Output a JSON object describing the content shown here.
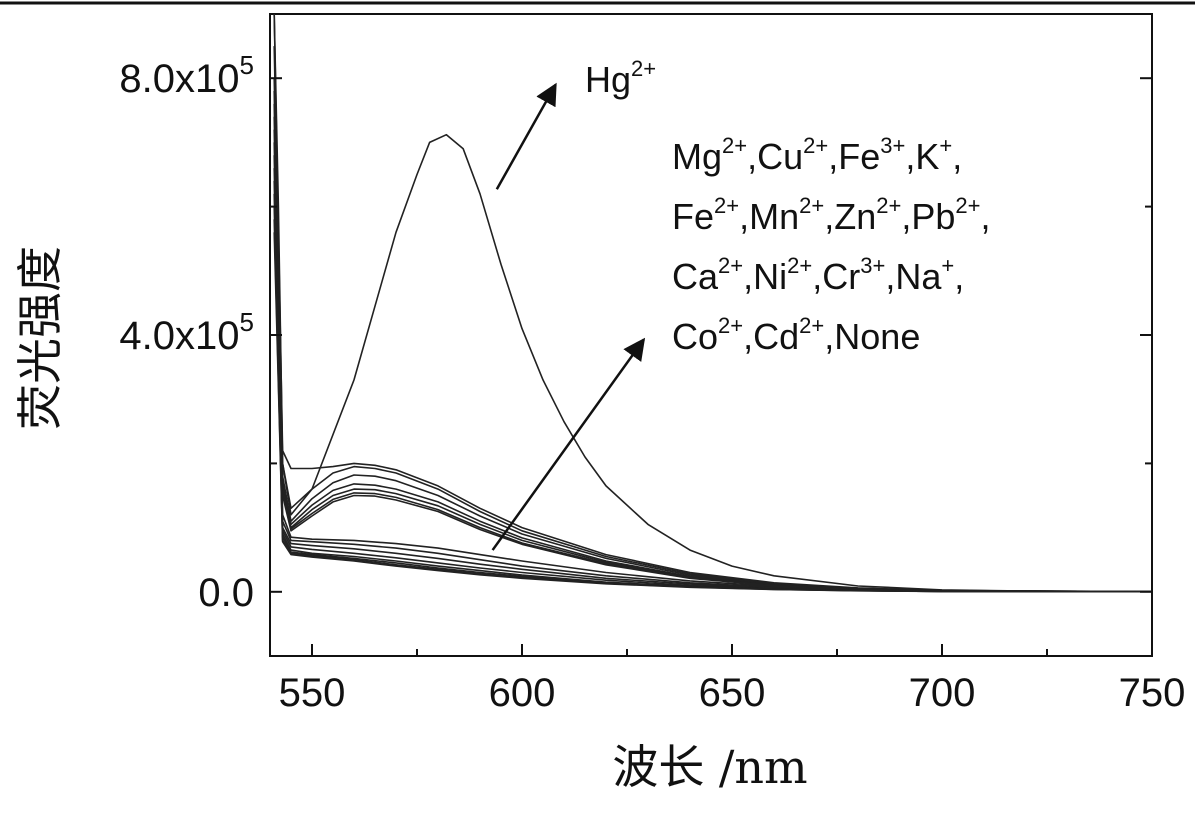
{
  "chart_data": {
    "type": "line",
    "xlabel": "波长 /nm",
    "ylabel": "荧光强度",
    "xlim": [
      540,
      750
    ],
    "ylim": [
      -100000,
      900000
    ],
    "x_ticks": [
      {
        "value": 550,
        "label": "550"
      },
      {
        "value": 600,
        "label": "600"
      },
      {
        "value": 650,
        "label": "650"
      },
      {
        "value": 700,
        "label": "700"
      },
      {
        "value": 750,
        "label": "750"
      }
    ],
    "y_ticks": [
      {
        "value": 0,
        "mantissa": "0.0",
        "exp": ""
      },
      {
        "value": 400000,
        "mantissa": "4.0x10",
        "exp": "5"
      },
      {
        "value": 800000,
        "mantissa": "8.0x10",
        "exp": "5"
      }
    ],
    "grid": false,
    "series": [
      {
        "x": [
          541,
          542,
          543,
          545,
          550,
          560,
          570,
          575,
          578,
          582,
          586,
          590,
          595,
          600,
          605,
          610,
          615,
          620,
          630,
          640,
          650,
          660,
          680,
          700,
          725,
          750
        ],
        "y": [
          900000,
          600000,
          200000,
          130000,
          160000,
          330000,
          560000,
          650000,
          700000,
          712000,
          690000,
          620000,
          510000,
          410000,
          330000,
          265000,
          210000,
          165000,
          105000,
          65000,
          40000,
          25000,
          9000,
          3000,
          800,
          200
        ]
      },
      {
        "x": [
          541,
          543,
          545,
          550,
          555,
          560,
          565,
          570,
          580,
          590,
          600,
          620,
          640,
          660,
          680,
          700,
          750
        ],
        "y": [
          900000,
          220000,
          192000,
          192000,
          195000,
          200000,
          197000,
          190000,
          165000,
          130000,
          100000,
          58000,
          30000,
          14000,
          6000,
          2000,
          300
        ]
      },
      {
        "x": [
          541,
          543,
          545,
          550,
          555,
          560,
          565,
          570,
          580,
          590,
          600,
          620,
          640,
          660,
          680,
          700,
          750
        ],
        "y": [
          850000,
          200000,
          120000,
          160000,
          185000,
          195000,
          192000,
          185000,
          160000,
          125000,
          95000,
          55000,
          28000,
          13000,
          5500,
          1800,
          300
        ]
      },
      {
        "x": [
          541,
          543,
          545,
          550,
          555,
          560,
          565,
          570,
          580,
          590,
          600,
          620,
          640,
          660,
          680,
          700,
          750
        ],
        "y": [
          800000,
          180000,
          110000,
          145000,
          170000,
          182000,
          180000,
          173000,
          150000,
          118000,
          90000,
          52000,
          26000,
          12000,
          5000,
          1600,
          300
        ]
      },
      {
        "x": [
          541,
          543,
          545,
          550,
          555,
          560,
          565,
          570,
          580,
          590,
          600,
          620,
          640,
          660,
          680,
          700,
          750
        ],
        "y": [
          780000,
          170000,
          105000,
          135000,
          158000,
          168000,
          166000,
          160000,
          140000,
          110000,
          84000,
          48000,
          24000,
          11000,
          4500,
          1500,
          300
        ]
      },
      {
        "x": [
          541,
          543,
          545,
          550,
          555,
          560,
          565,
          570,
          580,
          590,
          600,
          620,
          640,
          660,
          680,
          700,
          750
        ],
        "y": [
          760000,
          160000,
          100000,
          128000,
          150000,
          160000,
          159000,
          153000,
          134000,
          105000,
          80000,
          46000,
          23000,
          10500,
          4300,
          1400,
          300
        ]
      },
      {
        "x": [
          541,
          543,
          545,
          550,
          555,
          560,
          565,
          570,
          580,
          590,
          600,
          620,
          640,
          660,
          680,
          700,
          750
        ],
        "y": [
          740000,
          155000,
          98000,
          122000,
          144000,
          154000,
          153000,
          147000,
          128000,
          100000,
          76000,
          44000,
          22000,
          10000,
          4000,
          1300,
          300
        ]
      },
      {
        "x": [
          541,
          543,
          545,
          550,
          555,
          560,
          565,
          570,
          580,
          590,
          600,
          620,
          640,
          660,
          680,
          700,
          750
        ],
        "y": [
          720000,
          150000,
          95000,
          118000,
          140000,
          150000,
          149000,
          143000,
          125000,
          97000,
          74000,
          42000,
          21000,
          9500,
          3800,
          1200,
          300
        ]
      },
      {
        "x": [
          541,
          543,
          545,
          550,
          560,
          570,
          580,
          590,
          600,
          620,
          640,
          660,
          680,
          700,
          750
        ],
        "y": [
          700000,
          120000,
          85000,
          82000,
          80000,
          75000,
          68000,
          58000,
          48000,
          30000,
          17000,
          8500,
          3500,
          1200,
          200
        ]
      },
      {
        "x": [
          541,
          543,
          545,
          550,
          560,
          570,
          580,
          590,
          600,
          620,
          640,
          660,
          680,
          700,
          750
        ],
        "y": [
          680000,
          110000,
          80000,
          78000,
          74000,
          68000,
          60000,
          50000,
          40000,
          25000,
          14000,
          7000,
          3000,
          1000,
          200
        ]
      },
      {
        "x": [
          541,
          543,
          545,
          550,
          560,
          570,
          580,
          590,
          600,
          620,
          640,
          660,
          680,
          700,
          750
        ],
        "y": [
          660000,
          100000,
          75000,
          72000,
          67000,
          60000,
          52000,
          43000,
          35000,
          21000,
          12000,
          6000,
          2600,
          900,
          200
        ]
      },
      {
        "x": [
          541,
          543,
          545,
          550,
          560,
          570,
          580,
          590,
          600,
          620,
          640,
          660,
          680,
          700,
          750
        ],
        "y": [
          640000,
          95000,
          70000,
          66000,
          60000,
          53000,
          45000,
          37000,
          30000,
          18000,
          10000,
          5000,
          2200,
          800,
          200
        ]
      },
      {
        "x": [
          541,
          543,
          545,
          550,
          560,
          570,
          580,
          590,
          600,
          620,
          640,
          660,
          680,
          700,
          750
        ],
        "y": [
          620000,
          90000,
          65000,
          60000,
          55000,
          48000,
          40000,
          33000,
          26000,
          15000,
          8500,
          4300,
          1900,
          700,
          200
        ]
      },
      {
        "x": [
          541,
          543,
          545,
          550,
          560,
          570,
          580,
          590,
          600,
          620,
          640,
          660,
          680,
          700,
          750
        ],
        "y": [
          600000,
          85000,
          62000,
          58000,
          52000,
          45000,
          37000,
          30000,
          24000,
          14000,
          8000,
          4000,
          1800,
          650,
          200
        ]
      },
      {
        "x": [
          541,
          543,
          545,
          550,
          560,
          570,
          580,
          590,
          600,
          620,
          640,
          660,
          680,
          700,
          750
        ],
        "y": [
          580000,
          80000,
          60000,
          56000,
          50000,
          42000,
          35000,
          28000,
          22000,
          13000,
          7500,
          3800,
          1700,
          600,
          200
        ]
      },
      {
        "x": [
          541,
          543,
          545,
          550,
          560,
          570,
          580,
          590,
          600,
          620,
          640,
          660,
          680,
          700,
          750
        ],
        "y": [
          560000,
          78000,
          58000,
          54000,
          48000,
          40000,
          33000,
          26500,
          21000,
          12500,
          7000,
          3600,
          1600,
          580,
          200
        ]
      }
    ],
    "annotations": [
      {
        "kind": "hg",
        "ion": "Hg",
        "charge": "2+",
        "arrow_from": [
          594,
          627000
        ],
        "arrow_to": [
          608,
          790000
        ],
        "label_at": [
          615,
          800000
        ]
      },
      {
        "kind": "group",
        "arrow_from": [
          593,
          65000
        ],
        "arrow_to": [
          629,
          393000
        ],
        "lines": [
          [
            {
              "ion": "Mg",
              "charge": "2+"
            },
            {
              "ion": "Cu",
              "charge": "2+"
            },
            {
              "ion": "Fe",
              "charge": "3+"
            },
            {
              "ion": "K",
              "charge": "+"
            }
          ],
          [
            {
              "ion": "Fe",
              "charge": "2+"
            },
            {
              "ion": "Mn",
              "charge": "2+"
            },
            {
              "ion": "Zn",
              "charge": "2+"
            },
            {
              "ion": "Pb",
              "charge": "2+",
              "trailing": ","
            }
          ],
          [
            {
              "ion": "Ca",
              "charge": "2+"
            },
            {
              "ion": "Ni",
              "charge": "2+"
            },
            {
              "ion": "Cr",
              "charge": "3+"
            },
            {
              "ion": "Na",
              "charge": "+"
            }
          ],
          [
            {
              "ion": "Co",
              "charge": "2+"
            },
            {
              "ion": "Cd",
              "charge": "2+"
            },
            {
              "ion": "None",
              "charge": ""
            }
          ]
        ]
      }
    ]
  }
}
